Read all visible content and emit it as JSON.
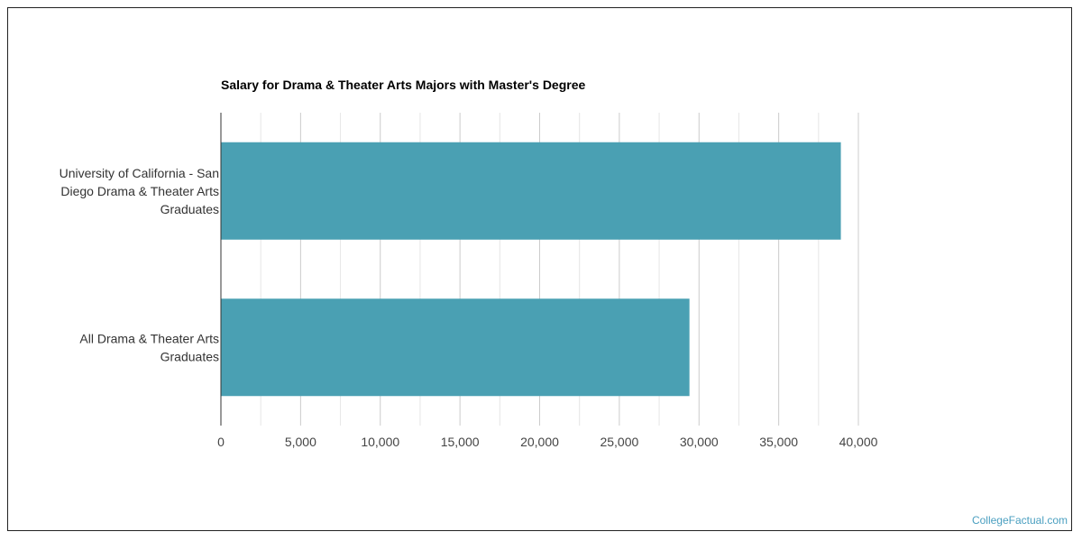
{
  "chart_data": {
    "type": "bar",
    "orientation": "horizontal",
    "title": "Salary for Drama & Theater Arts Majors with Master's Degree",
    "xlabel": "",
    "ylabel": "",
    "categories": [
      "University of California - San Diego Drama & Theater Arts Graduates",
      "All Drama & Theater Arts Graduates"
    ],
    "category_lines": [
      [
        "University of California - San",
        "Diego Drama & Theater Arts",
        "Graduates"
      ],
      [
        "All Drama & Theater Arts",
        "Graduates"
      ]
    ],
    "values": [
      38900,
      29400
    ],
    "xlim": [
      0,
      40000
    ],
    "xticks": [
      0,
      5000,
      10000,
      15000,
      20000,
      25000,
      30000,
      35000,
      40000
    ],
    "xtick_labels": [
      "0",
      "5,000",
      "10,000",
      "15,000",
      "20,000",
      "25,000",
      "30,000",
      "35,000",
      "40,000"
    ],
    "grid": true,
    "legend": "none",
    "bar_color": "#4aa0b3"
  },
  "watermark": "CollegeFactual.com"
}
